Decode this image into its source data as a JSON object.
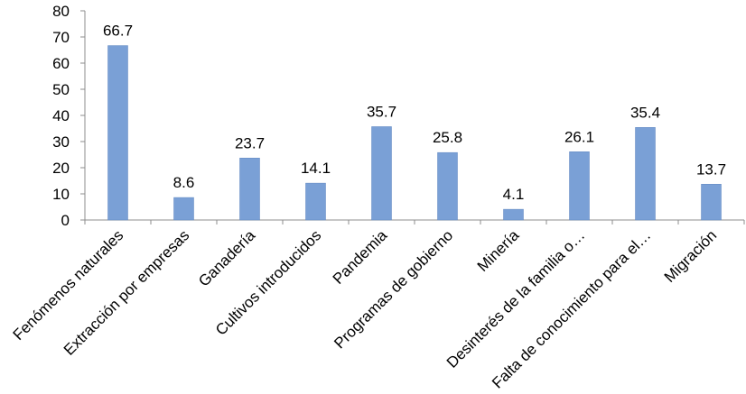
{
  "chart_data": {
    "type": "bar",
    "categories": [
      "Fenómenos naturales",
      "Extracción por empresas",
      "Ganadería",
      "Cultivos introducidos",
      "Pandemia",
      "Programas de gobierno",
      "Minería",
      "Desinterés de la familia o…",
      "Falta de conocimiento para el…",
      "Migración"
    ],
    "values": [
      66.7,
      8.6,
      23.7,
      14.1,
      35.7,
      25.8,
      4.1,
      26.1,
      35.4,
      13.7
    ],
    "data_labels": [
      "66.7",
      "8.6",
      "23.7",
      "14.1",
      "35.7",
      "25.8",
      "4.1",
      "26.1",
      "35.4",
      "13.7"
    ],
    "y_ticks": [
      "0",
      "10",
      "20",
      "30",
      "40",
      "50",
      "60",
      "70",
      "80"
    ],
    "ylim": [
      0,
      80
    ],
    "grid": false,
    "legend": "none",
    "colors": {
      "bar": "#7AA0D6",
      "bar_edge": "#5F86C0",
      "axis": "#8C8C8C"
    }
  }
}
